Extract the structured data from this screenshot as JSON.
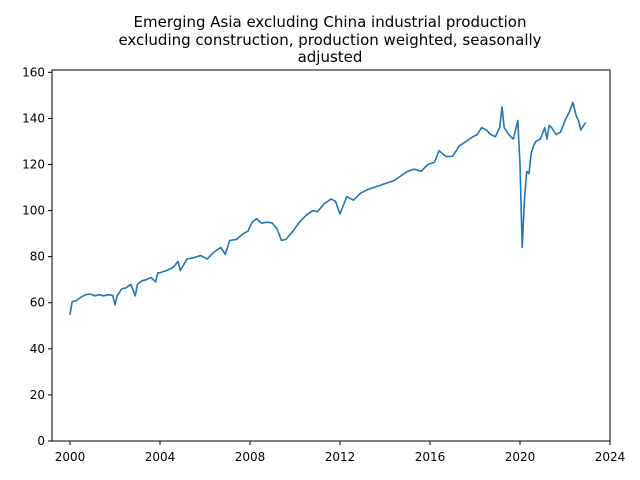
{
  "chart_data": {
    "type": "line",
    "title_lines": [
      "Emerging Asia excluding China industrial production",
      "excluding construction, production weighted, seasonally",
      "adjusted"
    ],
    "xlabel": "",
    "ylabel": "",
    "xlim": [
      1999.2,
      2024
    ],
    "ylim": [
      0,
      161
    ],
    "x_ticks": [
      2000,
      2004,
      2008,
      2012,
      2016,
      2020,
      2024
    ],
    "y_ticks": [
      0,
      20,
      40,
      60,
      80,
      100,
      120,
      140,
      160
    ],
    "grid": false,
    "series": [
      {
        "color": "#1f77b4",
        "x": [
          2000.0,
          2000.1,
          2000.3,
          2000.5,
          2000.7,
          2000.9,
          2001.1,
          2001.3,
          2001.5,
          2001.7,
          2001.9,
          2002.0,
          2002.1,
          2002.3,
          2002.5,
          2002.7,
          2002.9,
          2003.0,
          2003.2,
          2003.4,
          2003.6,
          2003.8,
          2003.9,
          2004.0,
          2004.3,
          2004.6,
          2004.8,
          2004.9,
          2005.2,
          2005.5,
          2005.8,
          2006.1,
          2006.4,
          2006.7,
          2006.9,
          2007.1,
          2007.4,
          2007.7,
          2007.9,
          2008.1,
          2008.3,
          2008.5,
          2008.8,
          2009.0,
          2009.2,
          2009.4,
          2009.6,
          2009.9,
          2010.2,
          2010.5,
          2010.8,
          2011.0,
          2011.3,
          2011.6,
          2011.8,
          2012.0,
          2012.3,
          2012.6,
          2012.9,
          2013.2,
          2013.5,
          2013.8,
          2014.1,
          2014.4,
          2014.7,
          2015.0,
          2015.3,
          2015.6,
          2015.9,
          2016.2,
          2016.4,
          2016.7,
          2017.0,
          2017.3,
          2017.6,
          2017.9,
          2018.1,
          2018.3,
          2018.5,
          2018.7,
          2018.9,
          2019.1,
          2019.2,
          2019.3,
          2019.5,
          2019.7,
          2019.9,
          2020.0,
          2020.1,
          2020.2,
          2020.3,
          2020.4,
          2020.5,
          2020.6,
          2020.7,
          2020.9,
          2021.1,
          2021.2,
          2021.3,
          2021.4,
          2021.6,
          2021.8,
          2022.0,
          2022.2,
          2022.35,
          2022.5,
          2022.6,
          2022.7,
          2022.9
        ],
        "y": [
          55,
          60.5,
          61,
          62.5,
          63.5,
          63.8,
          63,
          63.5,
          63,
          63.5,
          63.2,
          59,
          63,
          66,
          66.5,
          68,
          63,
          68,
          69.5,
          70,
          71,
          69,
          73,
          73,
          74,
          75.5,
          78,
          74,
          79,
          79.5,
          80.5,
          79,
          82,
          84,
          81,
          87,
          87.5,
          90,
          91,
          95,
          96.5,
          94.5,
          95,
          94.5,
          92,
          87,
          87.5,
          91,
          95,
          98,
          100,
          99.5,
          103,
          105,
          104,
          98.5,
          106,
          104.5,
          107.5,
          109,
          110,
          111,
          112,
          113,
          115,
          117,
          118,
          117,
          120,
          121,
          126,
          123.5,
          123.5,
          128,
          130,
          132,
          133,
          136,
          135,
          133,
          132,
          136,
          145,
          136,
          133,
          131,
          139,
          120,
          84,
          105,
          117,
          116,
          125,
          128,
          130,
          131,
          136,
          131,
          137,
          136,
          133,
          134,
          139,
          143,
          147,
          141,
          139,
          135,
          138
        ]
      }
    ]
  }
}
